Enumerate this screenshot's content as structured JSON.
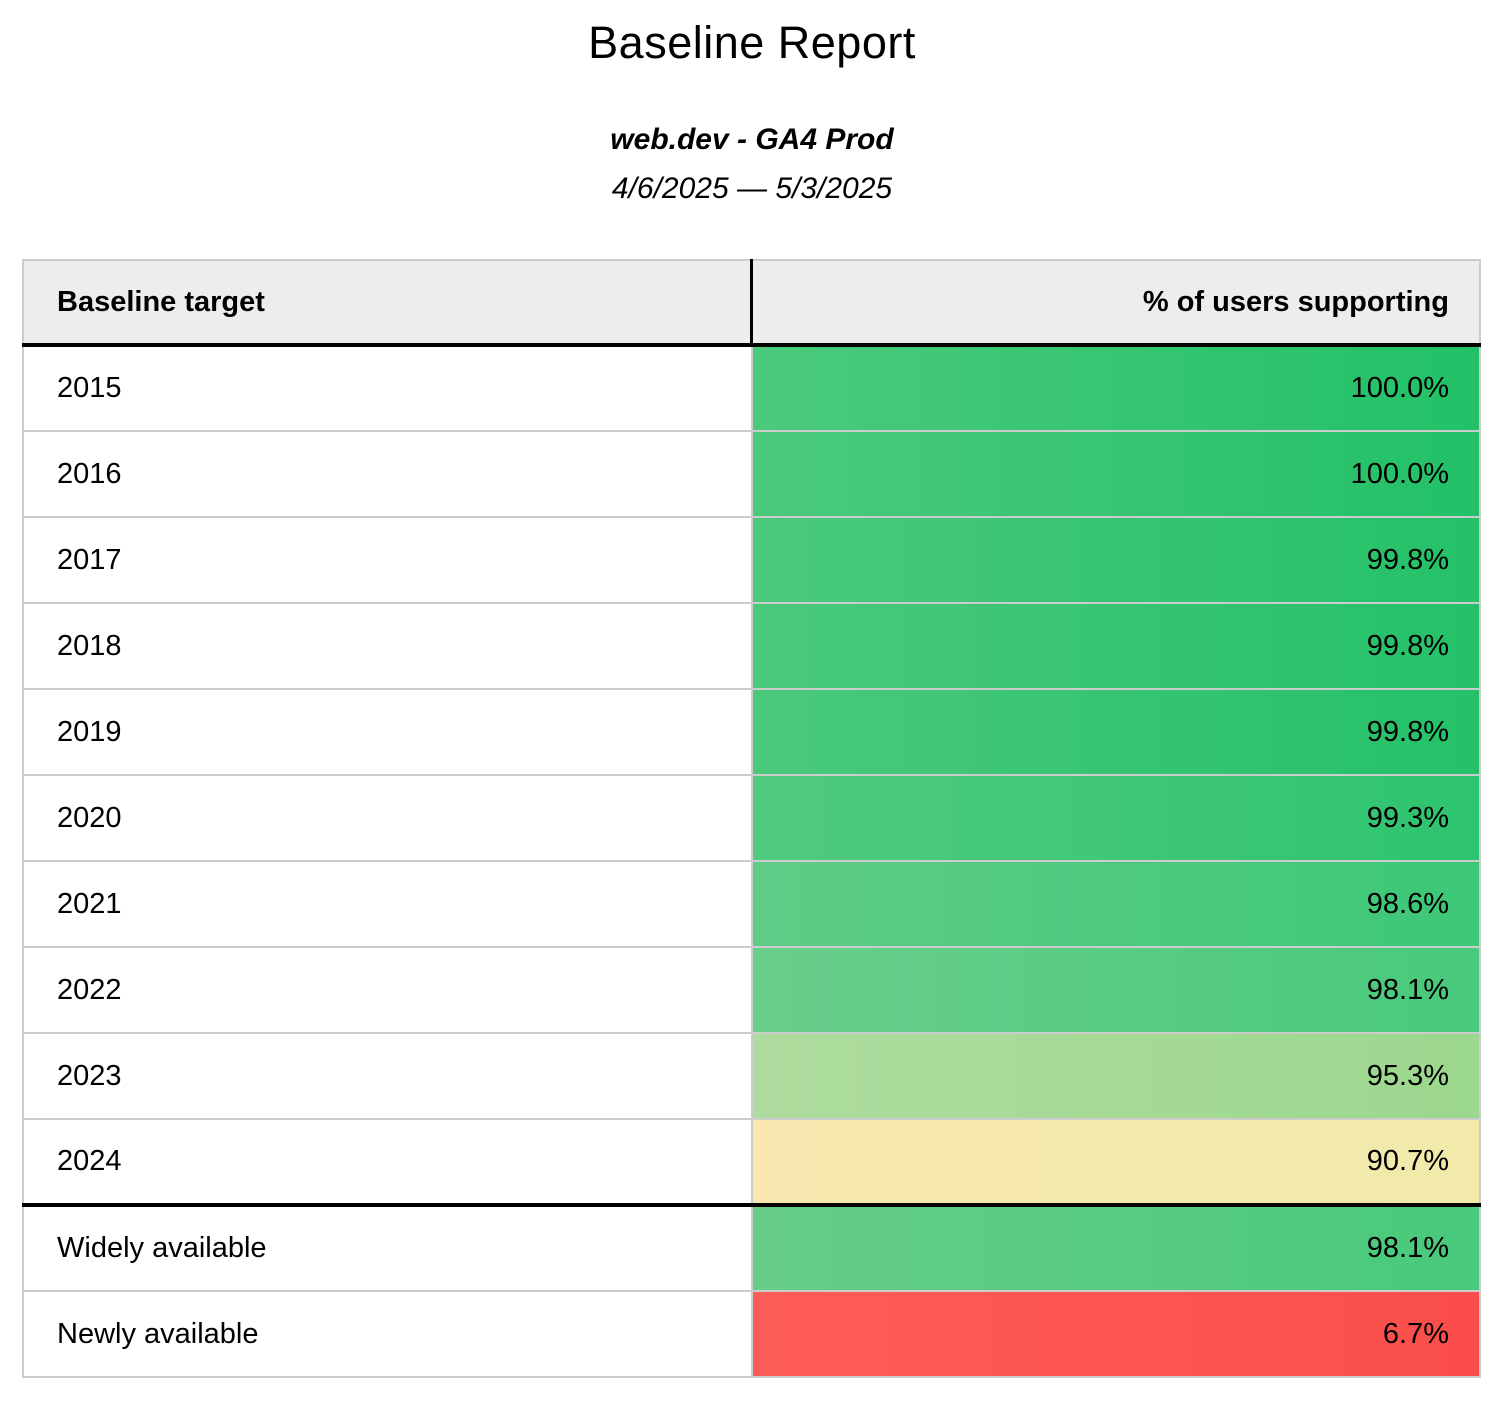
{
  "page": {
    "title": "Baseline Report",
    "subtitle": "web.dev - GA4 Prod",
    "date_range": "4/6/2025 — 5/3/2025"
  },
  "table": {
    "columns": [
      "Baseline target",
      "% of users supporting"
    ],
    "year_rows": [
      {
        "label": "2015",
        "value": "100.0%",
        "color_left": "#4bca7c",
        "color_right": "#22c167"
      },
      {
        "label": "2016",
        "value": "100.0%",
        "color_left": "#4bca7c",
        "color_right": "#22c167"
      },
      {
        "label": "2017",
        "value": "99.8%",
        "color_left": "#4ac97b",
        "color_right": "#24c168"
      },
      {
        "label": "2018",
        "value": "99.8%",
        "color_left": "#4ac97b",
        "color_right": "#24c168"
      },
      {
        "label": "2019",
        "value": "99.8%",
        "color_left": "#4ac97b",
        "color_right": "#24c168"
      },
      {
        "label": "2020",
        "value": "99.3%",
        "color_left": "#50ca7e",
        "color_right": "#2ec46f"
      },
      {
        "label": "2021",
        "value": "98.6%",
        "color_left": "#5fcc86",
        "color_right": "#3cc877"
      },
      {
        "label": "2022",
        "value": "98.1%",
        "color_left": "#69ce8b",
        "color_right": "#48c97b"
      },
      {
        "label": "2023",
        "value": "95.3%",
        "color_left": "#aedc9e",
        "color_right": "#9cd78e"
      },
      {
        "label": "2024",
        "value": "90.7%",
        "color_left": "#f8e7ae",
        "color_right": "#f1eaab"
      }
    ],
    "summary_rows": [
      {
        "label": "Widely available",
        "value": "98.1%",
        "color_left": "#66cd88",
        "color_right": "#48c97b"
      },
      {
        "label": "Newly available",
        "value": "6.7%",
        "color_left": "#fe5c58",
        "color_right": "#fb4e4b"
      }
    ],
    "colors": {
      "header_bg": "#ededed",
      "grid_border": "#cccccc",
      "strong_border": "#000000",
      "text": "#000000"
    }
  },
  "chart_data": {
    "type": "table",
    "title": "Baseline Report",
    "subtitle": "web.dev - GA4 Prod",
    "date_range": "4/6/2025 — 5/3/2025",
    "columns": [
      "Baseline target",
      "% of users supporting"
    ],
    "categories": [
      "2015",
      "2016",
      "2017",
      "2018",
      "2019",
      "2020",
      "2021",
      "2022",
      "2023",
      "2024",
      "Widely available",
      "Newly available"
    ],
    "values": [
      100.0,
      100.0,
      99.8,
      99.8,
      99.8,
      99.3,
      98.6,
      98.1,
      95.3,
      90.7,
      98.1,
      6.7
    ],
    "value_format": "percent",
    "color_scale": "green-yellow-red heatmap on percent column"
  }
}
